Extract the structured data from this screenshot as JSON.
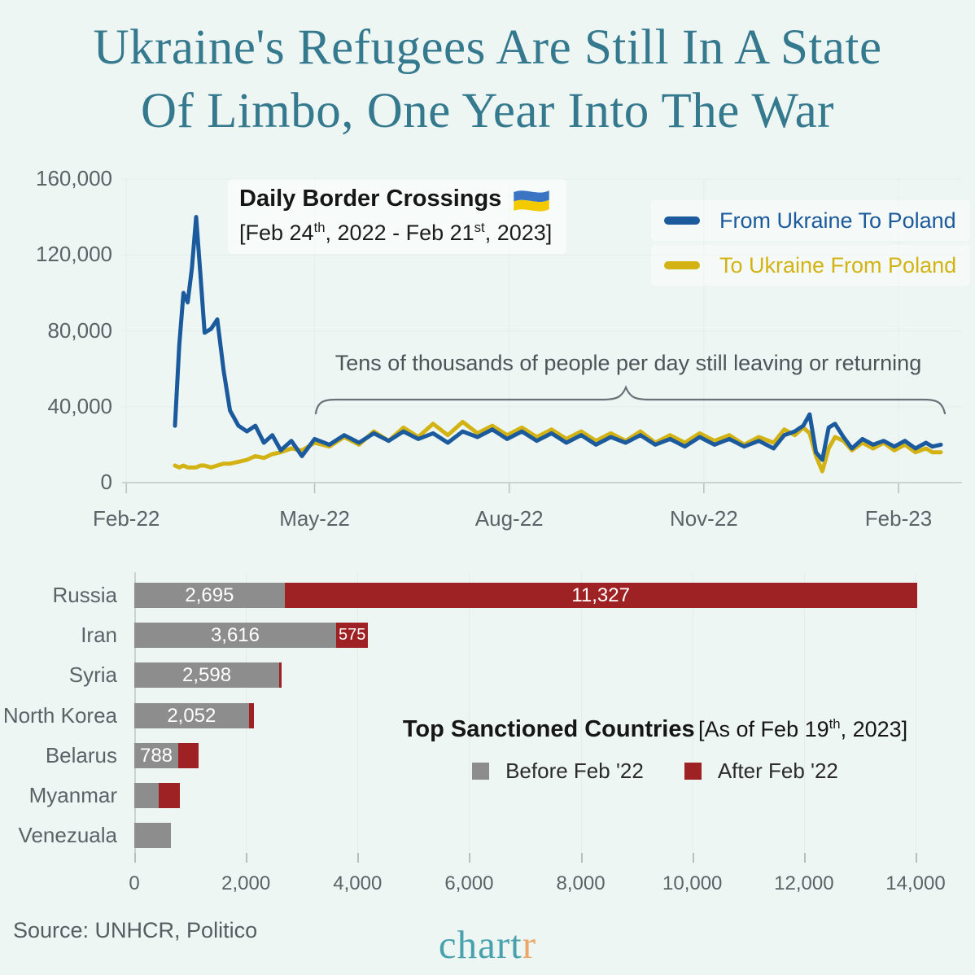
{
  "title": {
    "line1": "Ukraine's Refugees Are Still In A State",
    "line2": "Of Limbo, One Year Into The War"
  },
  "colors": {
    "background": "#edf6f3",
    "title_teal": "#35798e",
    "line_blue": "#1b5a9c",
    "line_yellow": "#d3b314",
    "bar_gray": "#8d8d8d",
    "bar_red": "#9e2124",
    "axis_text_gray": "#5c6266",
    "logo_teal": "#4aa1ae",
    "logo_orange": "#eba76a"
  },
  "chart_data": [
    {
      "type": "line",
      "title": "Daily Border Crossings",
      "title_icon": "ukraine-flag-icon",
      "subtitle_parts": {
        "p1": "[Feb 24",
        "sup1": "th",
        "p2": ", 2022 - Feb 21",
        "sup2": "st",
        "p3": ", 2023]"
      },
      "annotation": "Tens of thousands of people per day still leaving or returning",
      "x_unit": "days since Feb 24, 2022",
      "x": [
        0,
        2,
        4,
        6,
        8,
        10,
        12,
        14,
        17,
        20,
        23,
        26,
        30,
        34,
        38,
        42,
        46,
        50,
        55,
        60,
        66,
        73,
        80,
        87,
        94,
        101,
        108,
        115,
        122,
        129,
        136,
        143,
        150,
        157,
        164,
        171,
        178,
        185,
        192,
        199,
        206,
        213,
        220,
        227,
        234,
        241,
        248,
        255,
        262,
        269,
        276,
        283,
        288,
        293,
        297,
        300,
        303,
        306,
        309,
        312,
        316,
        320,
        325,
        330,
        335,
        340,
        345,
        350,
        355,
        358,
        362
      ],
      "series": [
        {
          "name": "From Ukraine To Poland",
          "color": "#1b5a9c",
          "values": [
            30000,
            72000,
            100000,
            95000,
            113000,
            140000,
            110000,
            79000,
            81000,
            86000,
            59000,
            38000,
            30000,
            27000,
            30000,
            21000,
            25000,
            17000,
            22000,
            14000,
            23000,
            20000,
            25000,
            21000,
            26000,
            22000,
            27000,
            23000,
            26000,
            21000,
            27000,
            24000,
            28000,
            23000,
            27000,
            22000,
            26000,
            21000,
            25000,
            20000,
            24000,
            21000,
            25000,
            20000,
            23000,
            19000,
            24000,
            20000,
            23000,
            19000,
            22000,
            18000,
            25000,
            27000,
            30000,
            36000,
            16000,
            12000,
            29000,
            31000,
            24000,
            18000,
            23000,
            20000,
            22000,
            19000,
            22000,
            18000,
            21000,
            19000,
            20000
          ]
        },
        {
          "name": "To Ukraine From Poland",
          "color": "#d3b314",
          "values": [
            9000,
            8000,
            9000,
            8000,
            8000,
            8000,
            9000,
            9000,
            8000,
            9000,
            10000,
            10000,
            11000,
            12000,
            14000,
            13000,
            15000,
            16000,
            18000,
            17000,
            21000,
            19000,
            24000,
            20000,
            27000,
            22000,
            29000,
            24000,
            31000,
            25000,
            32000,
            26000,
            30000,
            25000,
            29000,
            24000,
            28000,
            23000,
            27000,
            22000,
            26000,
            22000,
            27000,
            21000,
            25000,
            21000,
            26000,
            22000,
            25000,
            20000,
            24000,
            21000,
            28000,
            25000,
            29000,
            26000,
            14000,
            6000,
            18000,
            24000,
            22000,
            17000,
            21000,
            18000,
            21000,
            17000,
            20000,
            16000,
            18000,
            16000,
            16000
          ]
        }
      ],
      "ylim": [
        0,
        160000
      ],
      "y_ticks": {
        "labels": [
          "160,000",
          "120,000",
          "80,000",
          "40,000",
          "0"
        ],
        "values": [
          160000,
          120000,
          80000,
          40000,
          0
        ]
      },
      "x_ticks": {
        "labels": [
          "Feb-22",
          "May-22",
          "Aug-22",
          "Nov-22",
          "Feb-23"
        ],
        "day_offsets": [
          -23,
          66,
          158,
          250,
          342
        ]
      },
      "grid": "horizontal",
      "legend_position": "top-right"
    },
    {
      "type": "bar",
      "orientation": "horizontal",
      "stacked": true,
      "title": "Top Sanctioned Countries",
      "subtitle_parts": {
        "p1": "[As of Feb 19",
        "sup1": "th",
        "p2": ", 2023]"
      },
      "categories": [
        "Russia",
        "Iran",
        "Syria",
        "North Korea",
        "Belarus",
        "Myanmar",
        "Venezuala"
      ],
      "series": [
        {
          "name": "Before Feb '22",
          "color": "#8d8d8d",
          "values": [
            2695,
            3616,
            2598,
            2052,
            788,
            440,
            650
          ]
        },
        {
          "name": "After Feb '22",
          "color": "#9e2124",
          "values": [
            11327,
            575,
            45,
            85,
            360,
            375,
            0
          ]
        }
      ],
      "bar_labels": [
        [
          "2,695",
          "11,327"
        ],
        [
          "3,616",
          "575"
        ],
        [
          "2,598",
          ""
        ],
        [
          "2,052",
          ""
        ],
        [
          "788",
          ""
        ],
        [
          "",
          ""
        ],
        [
          "",
          ""
        ]
      ],
      "x_ticks": {
        "labels": [
          "0",
          "2,000",
          "4,000",
          "6,000",
          "8,000",
          "10,000",
          "12,000",
          "14,000"
        ],
        "values": [
          0,
          2000,
          4000,
          6000,
          8000,
          10000,
          12000,
          14000
        ]
      },
      "xlim": [
        0,
        14000
      ],
      "legend_position": "center-right"
    }
  ],
  "footer": {
    "source": "Source: UNHCR, Politico",
    "logo_part1": "chart",
    "logo_part2": "r"
  }
}
